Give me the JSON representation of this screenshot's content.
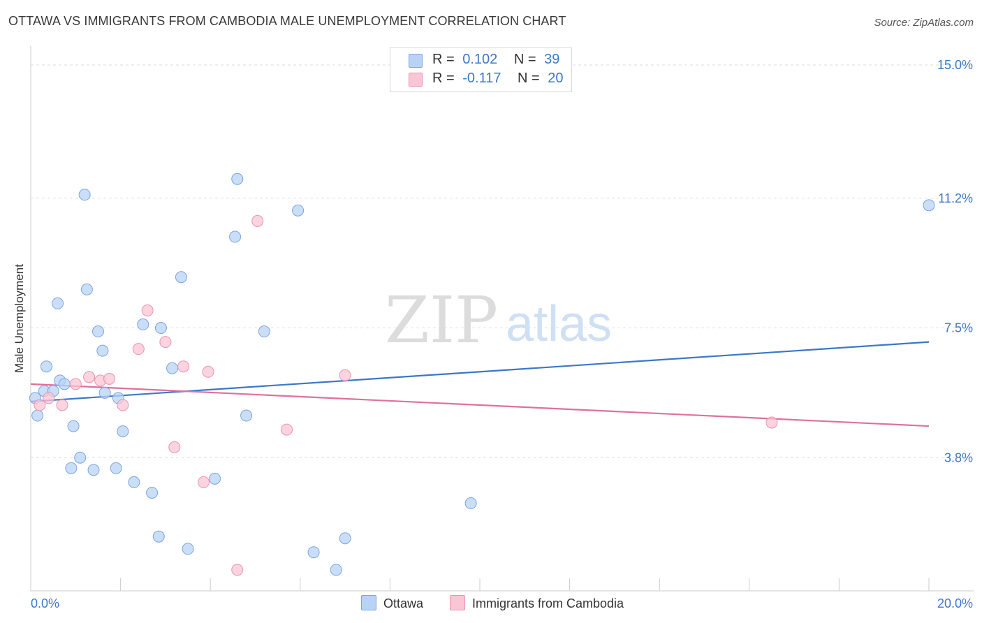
{
  "header": {
    "title": "OTTAWA VS IMMIGRANTS FROM CAMBODIA MALE UNEMPLOYMENT CORRELATION CHART",
    "source": "Source: ZipAtlas.com"
  },
  "watermark": {
    "zip": "ZIP",
    "atlas": "atlas"
  },
  "legend": {
    "rows": [
      {
        "r_label": "R =",
        "r_value": "0.102",
        "n_label": "N =",
        "n_value": "39",
        "color": "#b8d3f5",
        "stroke": "#7aa6e0"
      },
      {
        "r_label": "R =",
        "r_value": "-0.117",
        "n_label": "N =",
        "n_value": "20",
        "color": "#f9c6d6",
        "stroke": "#ec93b0"
      }
    ],
    "bottom": [
      {
        "label": "Ottawa",
        "color": "#b8d3f5",
        "stroke": "#7aa6e0"
      },
      {
        "label": "Immigrants from Cambodia",
        "color": "#f9c6d6",
        "stroke": "#ec93b0"
      }
    ]
  },
  "chart_data": {
    "type": "scatter",
    "title": "OTTAWA VS IMMIGRANTS FROM CAMBODIA MALE UNEMPLOYMENT CORRELATION CHART",
    "xlabel": "",
    "ylabel": "Male Unemployment",
    "xlim": [
      0,
      20
    ],
    "ylim": [
      0,
      15.3
    ],
    "x_tick_labels": [
      "0.0%",
      "20.0%"
    ],
    "y_ticks": [
      3.8,
      7.5,
      11.2,
      15.0
    ],
    "y_tick_labels": [
      "3.8%",
      "7.5%",
      "11.2%",
      "15.0%"
    ],
    "grid": true,
    "series": [
      {
        "name": "Ottawa",
        "color": "#7aa6e0",
        "fill": "#b8d3f5",
        "line_color": "#3b78c8",
        "trend": {
          "x": [
            0,
            20
          ],
          "y": [
            5.4,
            7.1
          ]
        },
        "points": [
          [
            0.1,
            5.5
          ],
          [
            0.15,
            5.0
          ],
          [
            0.3,
            5.7
          ],
          [
            0.35,
            6.4
          ],
          [
            0.5,
            5.7
          ],
          [
            0.6,
            8.2
          ],
          [
            0.65,
            6.0
          ],
          [
            0.75,
            5.9
          ],
          [
            0.9,
            3.5
          ],
          [
            0.95,
            4.7
          ],
          [
            1.1,
            3.8
          ],
          [
            1.2,
            11.3
          ],
          [
            1.25,
            8.6
          ],
          [
            1.4,
            3.45
          ],
          [
            1.5,
            7.4
          ],
          [
            1.6,
            6.85
          ],
          [
            1.65,
            5.65
          ],
          [
            1.9,
            3.5
          ],
          [
            1.95,
            5.5
          ],
          [
            2.05,
            4.55
          ],
          [
            2.3,
            3.1
          ],
          [
            2.5,
            7.6
          ],
          [
            2.7,
            2.8
          ],
          [
            2.85,
            1.55
          ],
          [
            2.9,
            7.5
          ],
          [
            3.15,
            6.35
          ],
          [
            3.35,
            8.95
          ],
          [
            3.5,
            1.2
          ],
          [
            4.1,
            3.2
          ],
          [
            4.55,
            10.1
          ],
          [
            4.6,
            11.75
          ],
          [
            4.8,
            5.0
          ],
          [
            5.2,
            7.4
          ],
          [
            5.95,
            10.85
          ],
          [
            6.3,
            1.1
          ],
          [
            6.8,
            0.6
          ],
          [
            7.0,
            1.5
          ],
          [
            9.8,
            2.5
          ],
          [
            20.0,
            11.0
          ]
        ]
      },
      {
        "name": "Immigrants from Cambodia",
        "color": "#ec93b0",
        "fill": "#f9c6d6",
        "line_color": "#e0709a",
        "trend": {
          "x": [
            0,
            20
          ],
          "y": [
            5.9,
            4.7
          ]
        },
        "points": [
          [
            0.2,
            5.3
          ],
          [
            0.4,
            5.5
          ],
          [
            0.7,
            5.3
          ],
          [
            1.0,
            5.9
          ],
          [
            1.3,
            6.1
          ],
          [
            1.55,
            6.0
          ],
          [
            1.75,
            6.05
          ],
          [
            2.05,
            5.3
          ],
          [
            2.4,
            6.9
          ],
          [
            2.6,
            8.0
          ],
          [
            3.0,
            7.1
          ],
          [
            3.2,
            4.1
          ],
          [
            3.4,
            6.4
          ],
          [
            3.85,
            3.1
          ],
          [
            3.95,
            6.25
          ],
          [
            4.6,
            0.6
          ],
          [
            5.05,
            10.55
          ],
          [
            5.7,
            4.6
          ],
          [
            7.0,
            6.15
          ],
          [
            16.5,
            4.8
          ]
        ]
      }
    ]
  }
}
